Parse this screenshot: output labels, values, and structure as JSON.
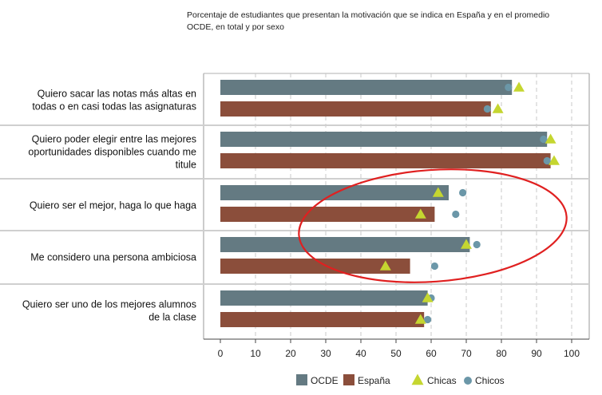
{
  "chart_data": {
    "type": "bar",
    "orientation": "horizontal",
    "title": "Porcentaje de estudiantes que presentan la motivación que se indica en España y en el promedio OCDE, en total y por sexo",
    "categories": [
      [
        "Quiero sacar las notas más altas en",
        "todas o en casi todas las asignaturas"
      ],
      [
        "Quiero poder elegir entre las mejores",
        "oportunidades disponibles cuando me",
        "titule"
      ],
      [
        "Quiero ser el mejor, haga lo que haga"
      ],
      [
        "Me considero una persona ambiciosa"
      ],
      [
        "Quiero ser uno de los mejores alumnos",
        "de la clase"
      ]
    ],
    "series": [
      {
        "name": "OCDE",
        "kind": "bar",
        "color": "#647a82",
        "values": [
          83,
          93,
          65,
          71,
          59
        ]
      },
      {
        "name": "España",
        "kind": "bar",
        "color": "#8b4e3b",
        "values": [
          77,
          94,
          61,
          54,
          58
        ]
      }
    ],
    "markers": {
      "chicas": {
        "name": "Chicas",
        "shape": "triangle",
        "color": "#c5d630",
        "ocde": [
          85,
          94,
          62,
          70,
          59
        ],
        "espana": [
          79,
          95,
          57,
          47,
          57
        ]
      },
      "chicos": {
        "name": "Chicos",
        "shape": "circle",
        "color": "#6b97a8",
        "ocde": [
          82,
          92,
          69,
          73,
          60
        ],
        "espana": [
          76,
          93,
          67,
          61,
          59
        ]
      }
    },
    "xlim": [
      0,
      100
    ],
    "xticks": [
      0,
      10,
      20,
      30,
      40,
      50,
      60,
      70,
      80,
      90,
      100
    ],
    "grid": true,
    "legend_position": "bottom",
    "annotation": {
      "type": "ellipse",
      "color": "#e02020"
    }
  }
}
